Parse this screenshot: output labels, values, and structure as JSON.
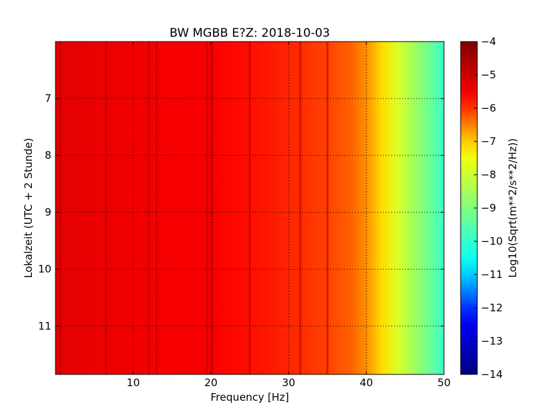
{
  "chart_data": {
    "type": "heatmap",
    "title": "BW MGBB E?Z: 2018-10-03",
    "xlabel": "Frequency [Hz]",
    "ylabel": "Lokalzeit (UTC + 2 Stunde)",
    "xlim": [
      0,
      50
    ],
    "ylim": [
      11.85,
      6.0
    ],
    "x_ticks": [
      10,
      20,
      30,
      40,
      50
    ],
    "x_tick_labels": [
      "10",
      "20",
      "30",
      "40",
      "50"
    ],
    "y_ticks": [
      7,
      8,
      9,
      10,
      11
    ],
    "y_tick_labels": [
      "7",
      "8",
      "9",
      "10",
      "11"
    ],
    "grid": true,
    "colorbar": {
      "label": "Log10(Sqrt(m**2/s**2/Hz))",
      "range": [
        -14,
        -4
      ],
      "ticks": [
        -4,
        -5,
        -6,
        -7,
        -8,
        -9,
        -10,
        -11,
        -12,
        -13,
        -14
      ],
      "tick_labels": [
        "−4",
        "−5",
        "−6",
        "−7",
        "−8",
        "−9",
        "−10",
        "−11",
        "−12",
        "−13",
        "−14"
      ],
      "colormap": "jet"
    },
    "spectral_profile": {
      "frequency_hz": [
        0,
        5,
        10,
        15,
        20,
        25,
        30,
        35,
        38,
        40,
        42,
        44,
        46,
        48,
        50
      ],
      "log10_amplitude": [
        -5.3,
        -5.4,
        -5.5,
        -5.55,
        -5.6,
        -5.75,
        -5.9,
        -6.1,
        -6.3,
        -6.6,
        -7.1,
        -7.8,
        -8.5,
        -9.2,
        -9.9
      ]
    },
    "spectral_lines_hz": [
      0.6,
      6.5,
      12,
      13,
      19.5,
      20.2,
      25,
      31.5,
      35
    ],
    "colors": {
      "colormap_stops": [
        "#00007f",
        "#0000ff",
        "#00ffff",
        "#7fff7f",
        "#ffff00",
        "#ff0000",
        "#7f0000"
      ]
    }
  }
}
